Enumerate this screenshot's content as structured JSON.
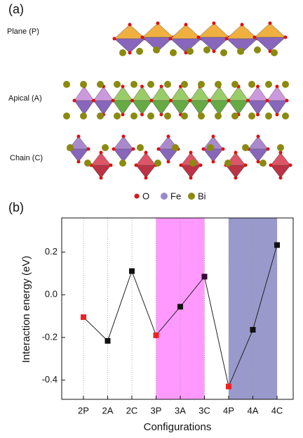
{
  "panel_a": {
    "label": "(a)",
    "rows": [
      "Plane (P)",
      "Apical (A)",
      "Chain (C)"
    ],
    "legend": [
      "O",
      "Fe",
      "Bi"
    ]
  },
  "chart_data": {
    "type": "line",
    "panel_label": "(b)",
    "x_label": "Configurations",
    "y_label": "Interaction energy (eV)",
    "categories": [
      "2P",
      "2A",
      "2C",
      "3P",
      "3A",
      "3C",
      "4P",
      "4A",
      "4C"
    ],
    "values": [
      -0.105,
      -0.216,
      0.111,
      -0.19,
      -0.056,
      0.085,
      -0.43,
      -0.164,
      0.233
    ],
    "marker_colors": [
      "#ee2222",
      "#111111",
      "#111111",
      "#ee2222",
      "#111111",
      "#330033",
      "#ee2222",
      "#111111",
      "#111111"
    ],
    "line_color": "#222222",
    "highlights": [
      {
        "from": "3P",
        "to": "3C",
        "color": "#ff99ff"
      },
      {
        "from": "4P",
        "to": "4C",
        "color": "#9999cc"
      }
    ],
    "ylim": [
      -0.49,
      0.36
    ],
    "yticks": [
      {
        "value": -0.4,
        "label": "-0.4"
      },
      {
        "value": -0.2,
        "label": "-0.2"
      },
      {
        "value": 0,
        "label": "0.0"
      },
      {
        "value": 0.2,
        "label": "0.2"
      }
    ],
    "x_grid": true
  }
}
